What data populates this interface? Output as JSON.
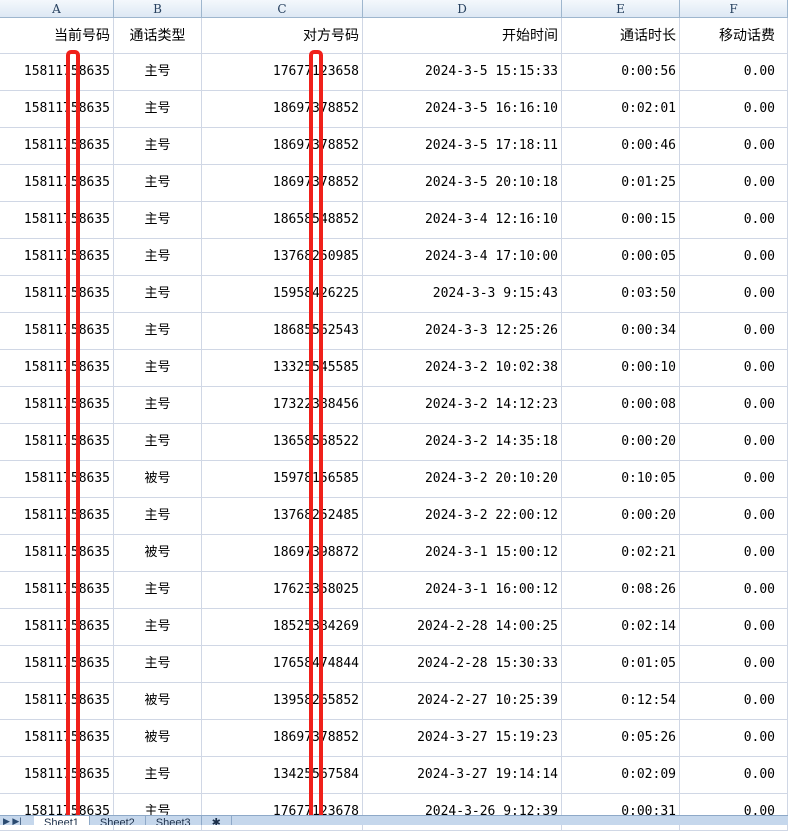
{
  "columns": [
    "A",
    "B",
    "C",
    "D",
    "E",
    "F"
  ],
  "headers": [
    "当前号码",
    "通话类型",
    "对方号码",
    "开始时间",
    "通话时长",
    "移动话费"
  ],
  "rows": [
    [
      "15811758635",
      "主号",
      "17677123658",
      "2024-3-5 15:15:33",
      "0:00:56",
      "0.00"
    ],
    [
      "15811758635",
      "主号",
      "18697378852",
      "2024-3-5 16:16:10",
      "0:02:01",
      "0.00"
    ],
    [
      "15811758635",
      "主号",
      "18697378852",
      "2024-3-5 17:18:11",
      "0:00:46",
      "0.00"
    ],
    [
      "15811758635",
      "主号",
      "18697378852",
      "2024-3-5 20:10:18",
      "0:01:25",
      "0.00"
    ],
    [
      "15811758635",
      "主号",
      "18658548852",
      "2024-3-4 12:16:10",
      "0:00:15",
      "0.00"
    ],
    [
      "15811758635",
      "主号",
      "13768250985",
      "2024-3-4 17:10:00",
      "0:00:05",
      "0.00"
    ],
    [
      "15811758635",
      "主号",
      "15958426225",
      "2024-3-3 9:15:43",
      "0:03:50",
      "0.00"
    ],
    [
      "15811758635",
      "主号",
      "18685562543",
      "2024-3-3 12:25:26",
      "0:00:34",
      "0.00"
    ],
    [
      "15811758635",
      "主号",
      "13325545585",
      "2024-3-2 10:02:38",
      "0:00:10",
      "0.00"
    ],
    [
      "15811758635",
      "主号",
      "17322388456",
      "2024-3-2 14:12:23",
      "0:00:08",
      "0.00"
    ],
    [
      "15811758635",
      "主号",
      "13658568522",
      "2024-3-2 14:35:18",
      "0:00:20",
      "0.00"
    ],
    [
      "15811758635",
      "被号",
      "15978156585",
      "2024-3-2 20:10:20",
      "0:10:05",
      "0.00"
    ],
    [
      "15811758635",
      "主号",
      "13768252485",
      "2024-3-2 22:00:12",
      "0:00:20",
      "0.00"
    ],
    [
      "15811758635",
      "被号",
      "18697398872",
      "2024-3-1 15:00:12",
      "0:02:21",
      "0.00"
    ],
    [
      "15811758635",
      "主号",
      "17623358025",
      "2024-3-1 16:00:12",
      "0:08:26",
      "0.00"
    ],
    [
      "15811758635",
      "主号",
      "18525384269",
      "2024-2-28 14:00:25",
      "0:02:14",
      "0.00"
    ],
    [
      "15811758635",
      "主号",
      "17658474844",
      "2024-2-28 15:30:33",
      "0:01:05",
      "0.00"
    ],
    [
      "15811758635",
      "被号",
      "13958265852",
      "2024-2-27 10:25:39",
      "0:12:54",
      "0.00"
    ],
    [
      "15811758635",
      "被号",
      "18697378852",
      "2024-3-27 15:19:23",
      "0:05:26",
      "0.00"
    ],
    [
      "15811758635",
      "主号",
      "13425567584",
      "2024-3-27 19:14:14",
      "0:02:09",
      "0.00"
    ],
    [
      "15811758635",
      "主号",
      "17677123678",
      "2024-3-26 9:12:39",
      "0:00:31",
      "0.00"
    ]
  ],
  "sheet_tabs": [
    "Sheet1",
    "Sheet2",
    "Sheet3"
  ],
  "active_tab": "Sheet1",
  "highlight_color": "#f0201a"
}
